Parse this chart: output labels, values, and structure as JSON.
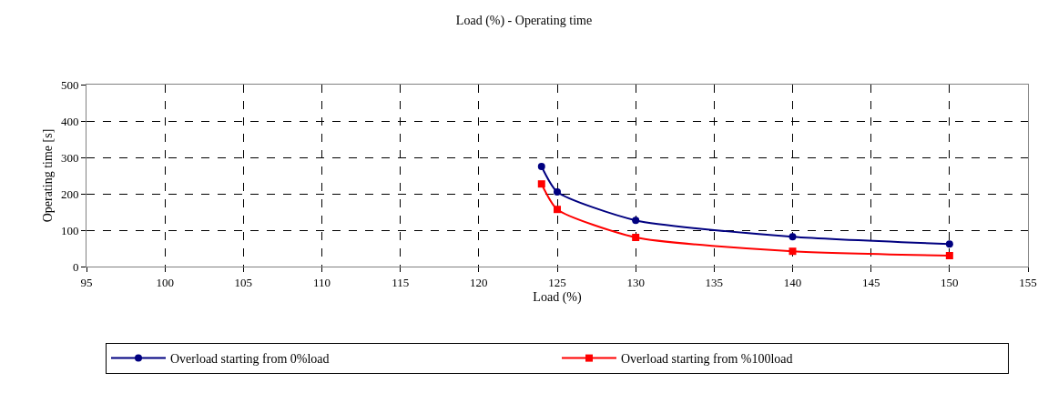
{
  "chart_data": {
    "type": "line",
    "title": "Load (%) - Operating time",
    "xlabel": "Load (%)",
    "ylabel": "Operating time [s]",
    "xlim": [
      95,
      155
    ],
    "xticks": [
      95,
      100,
      105,
      110,
      115,
      120,
      125,
      130,
      135,
      140,
      145,
      150,
      155
    ],
    "ylim": [
      0,
      500
    ],
    "yticks": [
      0,
      100,
      200,
      300,
      400,
      500
    ],
    "x": [
      124,
      125,
      130,
      140,
      150
    ],
    "series": [
      {
        "name": "Overload starting from 0%load",
        "color": "#000080",
        "marker": "circle",
        "values": [
          275,
          205,
          127,
          82,
          62
        ]
      },
      {
        "name": "Overload starting from %100load",
        "color": "#ff0000",
        "marker": "square",
        "values": [
          227,
          157,
          80,
          42,
          30
        ]
      }
    ],
    "grid": true,
    "legend": "bottom",
    "line_style": "solid"
  }
}
